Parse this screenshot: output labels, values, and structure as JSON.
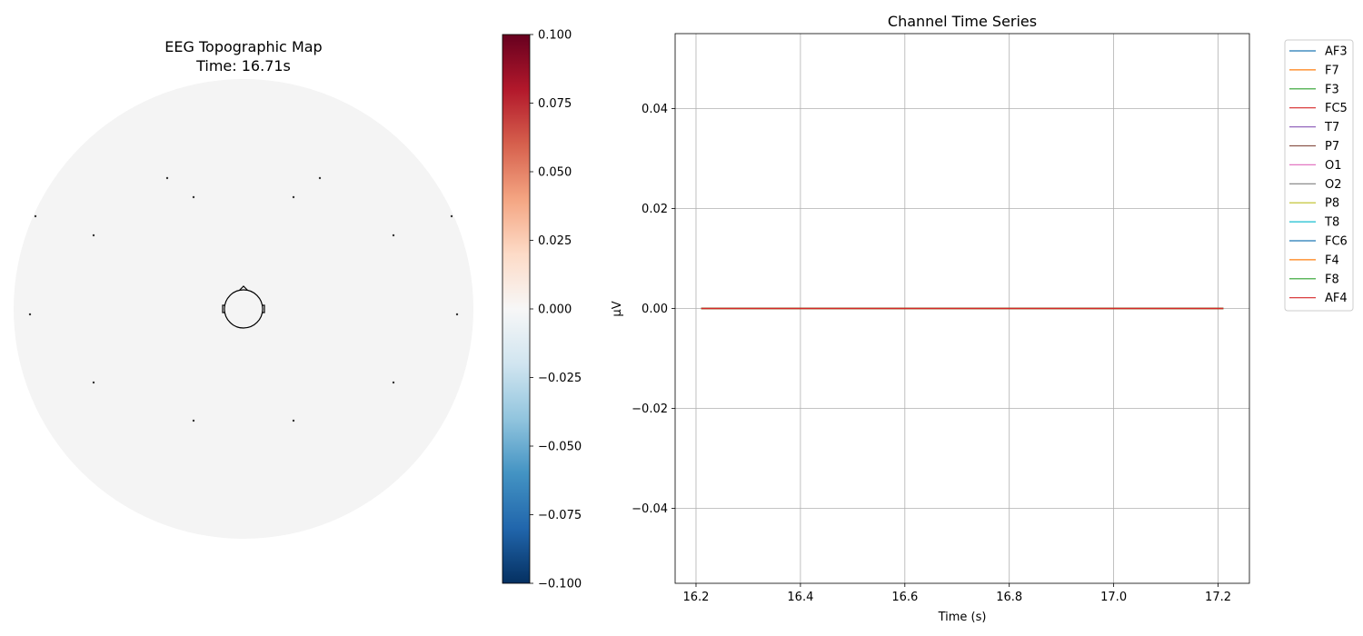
{
  "chart_data": [
    {
      "type": "heatmap",
      "subtype": "eeg-topomap",
      "title": "EEG Topographic Map",
      "subtitle": "Time: 16.71s",
      "head_outline": true,
      "sensor_count": 14,
      "map_fill_color": "#f4f4f4",
      "sensor_color": "#333333",
      "colorbar": {
        "colormap": "RdBu_r",
        "range": [
          -0.1,
          0.1
        ],
        "ticks": [
          0.1,
          0.075,
          0.05,
          0.025,
          0.0,
          -0.025,
          -0.05,
          -0.075,
          -0.1
        ],
        "tick_labels": [
          "0.100",
          "0.075",
          "0.050",
          "0.025",
          "0.000",
          "−0.025",
          "−0.050",
          "−0.075",
          "−0.100"
        ],
        "stops": [
          "#053061",
          "#2166ac",
          "#4393c3",
          "#92c5de",
          "#d1e5f0",
          "#f7f7f7",
          "#fddbc7",
          "#f4a582",
          "#d6604d",
          "#b2182b",
          "#67001f"
        ]
      }
    },
    {
      "type": "line",
      "title": "Channel Time Series",
      "xlabel": "Time (s)",
      "ylabel": "µV",
      "xlim": [
        16.16,
        17.26
      ],
      "ylim": [
        -0.055,
        0.055
      ],
      "xticks": [
        16.2,
        16.4,
        16.6,
        16.8,
        17.0,
        17.2
      ],
      "xtick_labels": [
        "16.2",
        "16.4",
        "16.6",
        "16.8",
        "17.0",
        "17.2"
      ],
      "yticks": [
        0.04,
        0.02,
        0.0,
        -0.02,
        -0.04
      ],
      "ytick_labels": [
        "0.04",
        "0.02",
        "0.00",
        "−0.02",
        "−0.04"
      ],
      "grid": true,
      "legend_position": "outside-right",
      "x": [
        16.21,
        17.21
      ],
      "series": [
        {
          "name": "AF3",
          "color": "#1f77b4",
          "values": [
            0,
            0
          ]
        },
        {
          "name": "F7",
          "color": "#ff7f0e",
          "values": [
            0,
            0
          ]
        },
        {
          "name": "F3",
          "color": "#2ca02c",
          "values": [
            0,
            0
          ]
        },
        {
          "name": "FC5",
          "color": "#d62728",
          "values": [
            0,
            0
          ]
        },
        {
          "name": "T7",
          "color": "#9467bd",
          "values": [
            0,
            0
          ]
        },
        {
          "name": "P7",
          "color": "#8c564b",
          "values": [
            0,
            0
          ]
        },
        {
          "name": "O1",
          "color": "#e377c2",
          "values": [
            0,
            0
          ]
        },
        {
          "name": "O2",
          "color": "#7f7f7f",
          "values": [
            0,
            0
          ]
        },
        {
          "name": "P8",
          "color": "#bcbd22",
          "values": [
            0,
            0
          ]
        },
        {
          "name": "T8",
          "color": "#17becf",
          "values": [
            0,
            0
          ]
        },
        {
          "name": "FC6",
          "color": "#1f77b4",
          "values": [
            0,
            0
          ]
        },
        {
          "name": "F4",
          "color": "#ff7f0e",
          "values": [
            0,
            0
          ]
        },
        {
          "name": "F8",
          "color": "#2ca02c",
          "values": [
            0,
            0
          ]
        },
        {
          "name": "AF4",
          "color": "#d62728",
          "values": [
            0,
            0
          ]
        }
      ]
    }
  ]
}
